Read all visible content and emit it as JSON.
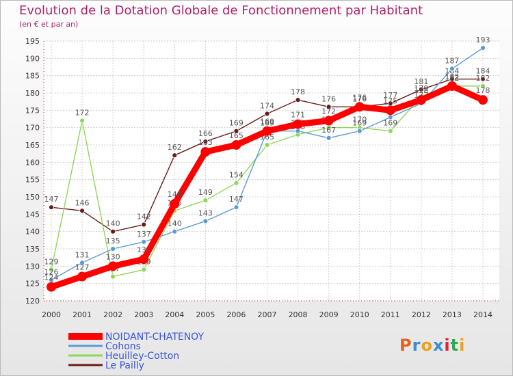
{
  "header": {
    "title": "Evolution de la Dotation Globale de Fonctionnement par Habitant",
    "subtitle": "(en € et par an)"
  },
  "logo": {
    "text": "Proxiti",
    "colors": [
      "#e8611a",
      "#3a8fd0",
      "#f0a020",
      "#3a8fd0",
      "#e0203a",
      "#2fa84f",
      "#f0a020"
    ]
  },
  "chart_data": {
    "type": "line",
    "title": "Evolution de la Dotation Globale de Fonctionnement par Habitant",
    "subtitle": "(en € et par an)",
    "xlabel": "",
    "ylabel": "",
    "ylim": [
      120,
      195
    ],
    "yticks": [
      120,
      125,
      130,
      135,
      140,
      145,
      150,
      155,
      160,
      165,
      170,
      175,
      180,
      185,
      190,
      195
    ],
    "x": [
      "2000",
      "2001",
      "2002",
      "2003",
      "2004",
      "2005",
      "2006",
      "2007",
      "2008",
      "2009",
      "2010",
      "2011",
      "2012",
      "2013",
      "2014"
    ],
    "legend_position": "bottom-left",
    "series": [
      {
        "name": "Le Pailly",
        "color": "#6b1a1a",
        "values": [
          147,
          146,
          140,
          142,
          162,
          166,
          169,
          174,
          178,
          176,
          176,
          177,
          181,
          184,
          184
        ],
        "labels": [
          "147",
          "146",
          "140",
          "142",
          "162",
          "166",
          "169",
          "174",
          "178",
          "176",
          "176",
          "177",
          "181",
          "184",
          "184"
        ]
      },
      {
        "name": "Heuilley-Cotton",
        "color": "#8fd65a",
        "values": [
          129,
          172,
          127,
          129,
          146,
          149,
          154,
          165,
          168,
          170,
          170,
          169,
          179,
          182,
          182
        ],
        "labels": [
          "129",
          "172",
          "127",
          "129",
          "146",
          "149",
          "154",
          "165",
          "168",
          "170",
          "170",
          "169",
          "179",
          "182",
          "182"
        ]
      },
      {
        "name": "Cohons",
        "color": "#5b9bd5",
        "values": [
          126,
          131,
          135,
          137,
          140,
          143,
          147,
          169,
          169,
          167,
          169,
          173,
          177,
          187,
          193
        ],
        "labels": [
          "126",
          "131",
          "135",
          "137",
          "140",
          "143",
          "147",
          "169",
          "169",
          "167",
          "169",
          "173",
          "177",
          "187",
          "193"
        ]
      },
      {
        "name": "NOIDANT-CHATENOY",
        "color": "#ff0000",
        "values": [
          124,
          127,
          130,
          132,
          148,
          163,
          165,
          169,
          171,
          172,
          176,
          175,
          178,
          182,
          178
        ],
        "labels": [
          "124",
          "127",
          "130",
          "132",
          "148",
          "163",
          "165",
          "169",
          "171",
          "172",
          "176",
          "175",
          "178",
          "182",
          "178"
        ]
      }
    ],
    "legend": [
      "NOIDANT-CHATENOY",
      "Cohons",
      "Heuilley-Cotton",
      "Le Pailly"
    ],
    "legend_colors": [
      "#ff0000",
      "#5b9bd5",
      "#8fd65a",
      "#6b1a1a"
    ]
  }
}
